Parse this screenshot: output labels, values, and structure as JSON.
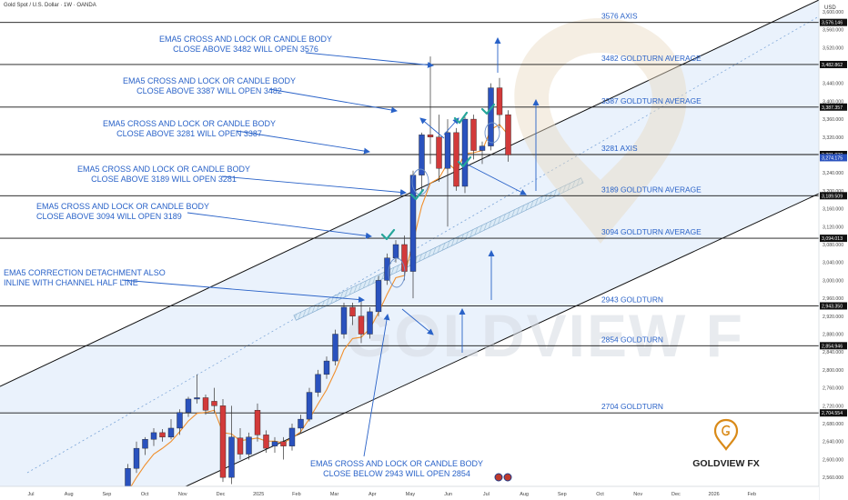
{
  "header": {
    "symbol_line": "Gold Spot / U.S. Dollar · 1W · OANDA",
    "currency": "USD"
  },
  "colors": {
    "up": "#2a52be",
    "down": "#d23a3a",
    "ema": "#f0902e",
    "annotation": "#2962c8",
    "level_line": "#111111",
    "channel_fill": "#eaf2fc",
    "check": "#26a69a"
  },
  "chart_data": {
    "type": "candlestick",
    "interval": "1W",
    "ylim": [
      2540,
      3620
    ],
    "y_ticks": [
      2560,
      2600,
      2640,
      2680,
      2720,
      2760,
      2800,
      2840,
      2880,
      2920,
      2960,
      3000,
      3040,
      3080,
      3120,
      3160,
      3200,
      3240,
      3280,
      3320,
      3360,
      3400,
      3440,
      3480,
      3520,
      3560,
      3600
    ],
    "x_ticks": [
      "Jul",
      "Aug",
      "Sep",
      "Oct",
      "Nov",
      "Dec",
      "2025",
      "Feb",
      "Mar",
      "Apr",
      "May",
      "Jun",
      "Jul",
      "Aug",
      "Sep",
      "Oct",
      "Nov",
      "Dec",
      "2026",
      "Feb"
    ],
    "candles": [
      {
        "o": 2495,
        "h": 2532,
        "l": 2470,
        "c": 2520
      },
      {
        "o": 2525,
        "h": 2590,
        "l": 2515,
        "c": 2580
      },
      {
        "o": 2580,
        "h": 2640,
        "l": 2570,
        "c": 2625
      },
      {
        "o": 2625,
        "h": 2650,
        "l": 2610,
        "c": 2645
      },
      {
        "o": 2645,
        "h": 2670,
        "l": 2630,
        "c": 2660
      },
      {
        "o": 2660,
        "h": 2668,
        "l": 2640,
        "c": 2650
      },
      {
        "o": 2650,
        "h": 2690,
        "l": 2645,
        "c": 2670
      },
      {
        "o": 2670,
        "h": 2712,
        "l": 2655,
        "c": 2705
      },
      {
        "o": 2705,
        "h": 2740,
        "l": 2695,
        "c": 2735
      },
      {
        "o": 2735,
        "h": 2790,
        "l": 2725,
        "c": 2738
      },
      {
        "o": 2738,
        "h": 2745,
        "l": 2700,
        "c": 2710
      },
      {
        "o": 2730,
        "h": 2760,
        "l": 2705,
        "c": 2720
      },
      {
        "o": 2720,
        "h": 2735,
        "l": 2550,
        "c": 2560
      },
      {
        "o": 2560,
        "h": 2720,
        "l": 2545,
        "c": 2650
      },
      {
        "o": 2648,
        "h": 2670,
        "l": 2600,
        "c": 2612
      },
      {
        "o": 2612,
        "h": 2660,
        "l": 2600,
        "c": 2650
      },
      {
        "o": 2710,
        "h": 2725,
        "l": 2640,
        "c": 2655
      },
      {
        "o": 2655,
        "h": 2665,
        "l": 2615,
        "c": 2625
      },
      {
        "o": 2630,
        "h": 2650,
        "l": 2615,
        "c": 2640
      },
      {
        "o": 2640,
        "h": 2650,
        "l": 2600,
        "c": 2630
      },
      {
        "o": 2630,
        "h": 2680,
        "l": 2620,
        "c": 2670
      },
      {
        "o": 2670,
        "h": 2700,
        "l": 2660,
        "c": 2690
      },
      {
        "o": 2690,
        "h": 2760,
        "l": 2685,
        "c": 2750
      },
      {
        "o": 2750,
        "h": 2800,
        "l": 2740,
        "c": 2790
      },
      {
        "o": 2790,
        "h": 2830,
        "l": 2780,
        "c": 2820
      },
      {
        "o": 2820,
        "h": 2890,
        "l": 2810,
        "c": 2880
      },
      {
        "o": 2880,
        "h": 2950,
        "l": 2870,
        "c": 2940
      },
      {
        "o": 2940,
        "h": 2950,
        "l": 2900,
        "c": 2920
      },
      {
        "o": 2920,
        "h": 2960,
        "l": 2860,
        "c": 2880
      },
      {
        "o": 2880,
        "h": 2940,
        "l": 2870,
        "c": 2930
      },
      {
        "o": 2930,
        "h": 3010,
        "l": 2920,
        "c": 3000
      },
      {
        "o": 3000,
        "h": 3060,
        "l": 2990,
        "c": 3050
      },
      {
        "o": 3050,
        "h": 3090,
        "l": 3040,
        "c": 3080
      },
      {
        "o": 3080,
        "h": 3100,
        "l": 3000,
        "c": 3020
      },
      {
        "o": 3020,
        "h": 3245,
        "l": 2960,
        "c": 3235
      },
      {
        "o": 3235,
        "h": 3330,
        "l": 3200,
        "c": 3325
      },
      {
        "o": 3325,
        "h": 3500,
        "l": 3260,
        "c": 3320
      },
      {
        "o": 3320,
        "h": 3370,
        "l": 3220,
        "c": 3250
      },
      {
        "o": 3250,
        "h": 3360,
        "l": 3120,
        "c": 3330
      },
      {
        "o": 3330,
        "h": 3340,
        "l": 3200,
        "c": 3210
      },
      {
        "o": 3210,
        "h": 3365,
        "l": 3195,
        "c": 3360
      },
      {
        "o": 3360,
        "h": 3370,
        "l": 3270,
        "c": 3290
      },
      {
        "o": 3290,
        "h": 3310,
        "l": 3260,
        "c": 3300
      },
      {
        "o": 3300,
        "h": 3440,
        "l": 3290,
        "c": 3430
      },
      {
        "o": 3430,
        "h": 3452,
        "l": 3340,
        "c": 3370
      },
      {
        "o": 3370,
        "h": 3380,
        "l": 3265,
        "c": 3280
      }
    ],
    "ema5": [
      2505,
      2528,
      2560,
      2588,
      2612,
      2625,
      2640,
      2662,
      2686,
      2703,
      2705,
      2710,
      2660,
      2657,
      2642,
      2645,
      2648,
      2641,
      2641,
      2637,
      2648,
      2662,
      2691,
      2724,
      2756,
      2797,
      2845,
      2870,
      2873,
      2892,
      2928,
      2969,
      3006,
      3011,
      3086,
      3166,
      3217,
      3228,
      3262,
      3245,
      3283,
      3285,
      3290,
      3337,
      3348,
      3325
    ],
    "levels": [
      {
        "value": 3576,
        "label": "3576 AXIS",
        "tag": "3,576.146"
      },
      {
        "value": 3482,
        "label": "3482 GOLDTURN AVERAGE",
        "tag": "3,482.862"
      },
      {
        "value": 3387,
        "label": "3387 GOLDTURN AVERAGE",
        "tag": "3,387.357"
      },
      {
        "value": 3281,
        "label": "3281 AXIS",
        "tag": "3,281.030"
      },
      {
        "value": 3189,
        "label": "3189 GOLDTURN AVERAGE",
        "tag": "3,189.509"
      },
      {
        "value": 3094,
        "label": "3094 GOLDTURN AVERAGE",
        "tag": "3,094.013"
      },
      {
        "value": 2943,
        "label": "2943 GOLDTURN",
        "tag": "2,943.350"
      },
      {
        "value": 2854,
        "label": "2854 GOLDTURN",
        "tag": "2,854.946"
      },
      {
        "value": 2704,
        "label": "2704 GOLDTURN",
        "tag": "2,704.554"
      }
    ],
    "current_price": {
      "value": 3274,
      "tag": "3,274.175"
    },
    "annotations": [
      {
        "lines": [
          "EMA5 CROSS AND LOCK OR CANDLE BODY",
          "CLOSE ABOVE 3482 WILL OPEN 3576"
        ]
      },
      {
        "lines": [
          "EMA5 CROSS AND LOCK OR CANDLE BODY",
          "CLOSE ABOVE 3387 WILL OPEN 3482"
        ]
      },
      {
        "lines": [
          "EMA5 CROSS AND LOCK OR CANDLE BODY",
          "CLOSE ABOVE 3281 WILL OPEN 3387"
        ]
      },
      {
        "lines": [
          "EMA5 CROSS AND LOCK OR CANDLE BODY",
          "CLOSE ABOVE 3189 WILL OPEN 3281"
        ]
      },
      {
        "lines": [
          "EMA5 CROSS AND LOCK OR CANDLE BODY",
          "CLOSE ABOVE 3094 WILL OPEN 3189"
        ]
      },
      {
        "lines": [
          "EMA5 CORRECTION DETACHMENT ALSO",
          "INLINE WITH CHANNEL HALF LINE"
        ]
      },
      {
        "lines": [
          "EMA5 CROSS AND LOCK OR CANDLE BODY",
          "CLOSE BELOW 2943 WILL OPEN 2854"
        ]
      }
    ]
  },
  "branding": {
    "name": "GOLDVIEW FX",
    "watermark": "GOLDVIEW F",
    "logo_icon": "location-pin-g-icon"
  }
}
